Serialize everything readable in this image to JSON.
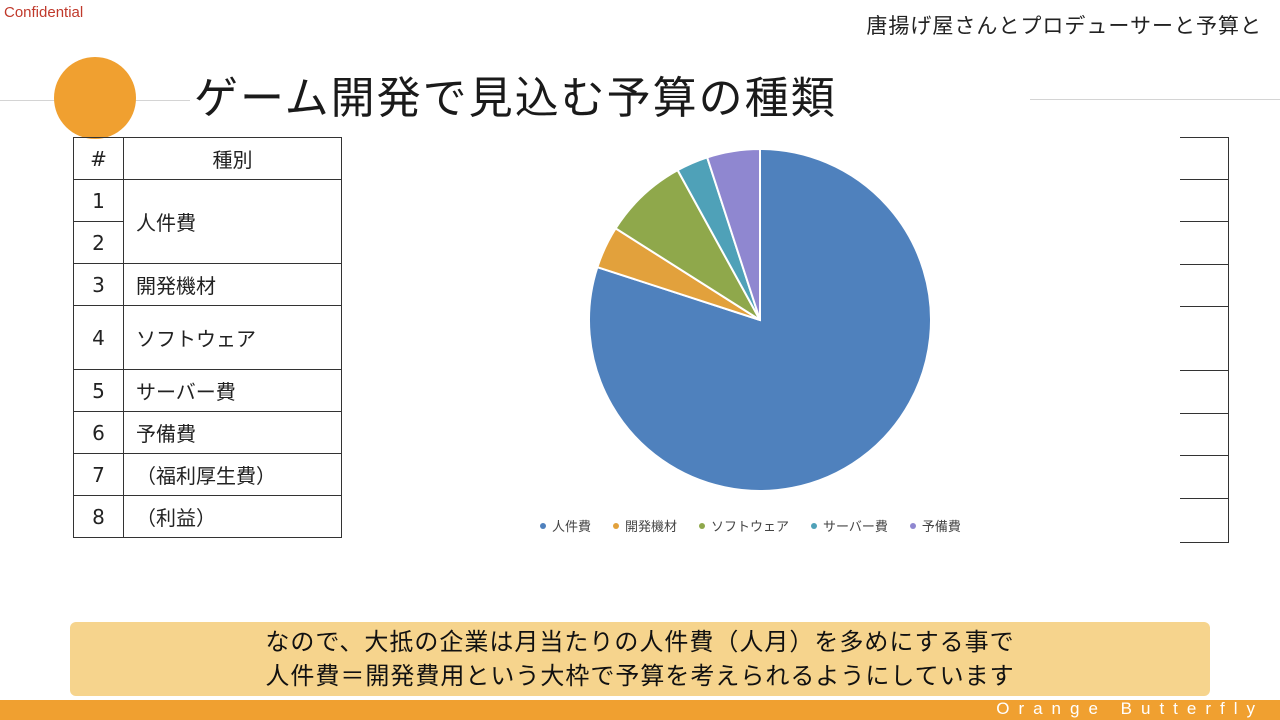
{
  "header": {
    "confidential": "Confidential",
    "subtitle": "唐揚げ屋さんとプロデューサーと予算と"
  },
  "slide": {
    "title": "ゲーム開発で見込む予算の種類"
  },
  "table": {
    "headers": [
      "#",
      "種別"
    ],
    "rows": [
      {
        "nums": [
          "1",
          "2"
        ],
        "name": "人件費"
      },
      {
        "nums": [
          "3"
        ],
        "name": "開発機材"
      },
      {
        "nums": [
          "4"
        ],
        "name": "ソフトウェア"
      },
      {
        "nums": [
          "5"
        ],
        "name": "サーバー費"
      },
      {
        "nums": [
          "6"
        ],
        "name": "予備費"
      },
      {
        "nums": [
          "7"
        ],
        "name": "（福利厚生費）"
      },
      {
        "nums": [
          "8"
        ],
        "name": "（利益）"
      }
    ]
  },
  "chart_data": {
    "type": "pie",
    "categories": [
      "人件費",
      "開発機材",
      "ソフトウェア",
      "サーバー費",
      "予備費"
    ],
    "values": [
      80,
      4,
      8,
      3,
      5
    ],
    "colors": [
      "#4f81bd",
      "#e2a13c",
      "#8fa84b",
      "#4fa1b8",
      "#8f87d0"
    ],
    "legend_position": "bottom"
  },
  "callout": {
    "line1": "なので、大抵の企業は月当たりの人件費（人月）を多めにする事で",
    "line2": "人件費＝開発費用という大枠で予算を考えられるようにしています"
  },
  "footer": {
    "brand": "Orange Butterfly",
    "accent": "#f0a030"
  }
}
